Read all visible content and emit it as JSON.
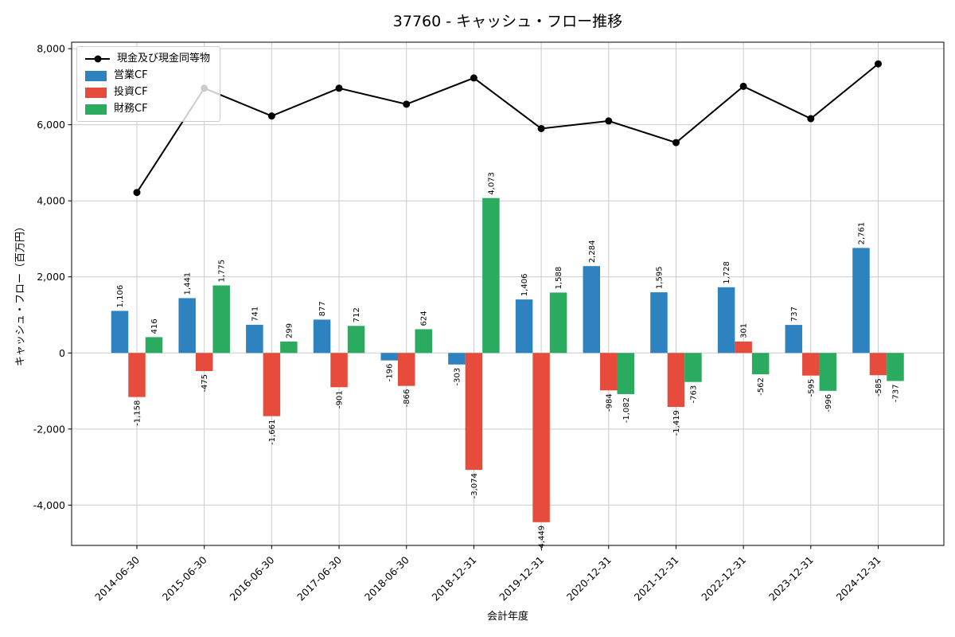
{
  "title": "37760 - キャッシュ・フロー推移",
  "chart_data": {
    "type": "bar",
    "title": "37760 - キャッシュ・フロー推移",
    "xlabel": "会計年度",
    "ylabel": "キャッシュ・フロー（百万円）",
    "categories": [
      "2014-06-30",
      "2015-06-30",
      "2016-06-30",
      "2017-06-30",
      "2018-06-30",
      "2018-12-31",
      "2019-12-31",
      "2020-12-31",
      "2021-12-31",
      "2022-12-31",
      "2023-12-31",
      "2024-12-31"
    ],
    "series": [
      {
        "id": "cash",
        "name": "現金及び現金同等物",
        "type": "line",
        "color": "#000000",
        "values": [
          4220,
          6960,
          6230,
          6960,
          6540,
          7230,
          5900,
          6100,
          5530,
          7010,
          6160,
          7600
        ]
      },
      {
        "id": "operating-cf",
        "name": "営業CF",
        "type": "bar",
        "color": "#2e82c0",
        "values": [
          1106,
          1441,
          741,
          877,
          -196,
          -303,
          1406,
          2284,
          1595,
          1728,
          737,
          2761
        ]
      },
      {
        "id": "investing-cf",
        "name": "投資CF",
        "type": "bar",
        "color": "#e64b3c",
        "values": [
          -1158,
          -475,
          -1661,
          -901,
          -866,
          -3074,
          -4449,
          -984,
          -1419,
          301,
          -595,
          -585
        ]
      },
      {
        "id": "financing-cf",
        "name": "財務CF",
        "type": "bar",
        "color": "#2aab60",
        "values": [
          416,
          1775,
          299,
          712,
          624,
          4073,
          1588,
          -1082,
          -763,
          -562,
          -996,
          -737
        ]
      }
    ],
    "ylim": [
      -5060,
      8170
    ],
    "yticks": [
      -4000,
      -2000,
      0,
      2000,
      4000,
      6000,
      8000
    ],
    "grid": true,
    "grid_color": "#cccccc",
    "background": "#ffffff",
    "legend_position": "upper-left",
    "bar_label_rotation": 90,
    "xtick_rotation": 45
  }
}
